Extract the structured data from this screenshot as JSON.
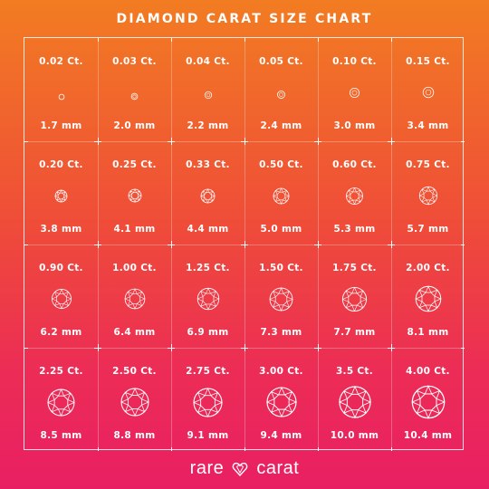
{
  "title": "DIAMOND CARAT SIZE CHART",
  "brand": {
    "left": "rare",
    "right": "carat",
    "logo_icon": "heart-diamond-icon"
  },
  "colors": {
    "gradient_top": "#f27c22",
    "gradient_bottom": "#e91f63",
    "foreground": "#ffffff"
  },
  "diamonds": [
    {
      "carat": "0.02 Ct.",
      "size": "1.7 mm",
      "diameter_mm": 1.7
    },
    {
      "carat": "0.03 Ct.",
      "size": "2.0 mm",
      "diameter_mm": 2.0
    },
    {
      "carat": "0.04 Ct.",
      "size": "2.2 mm",
      "diameter_mm": 2.2
    },
    {
      "carat": "0.05 Ct.",
      "size": "2.4 mm",
      "diameter_mm": 2.4
    },
    {
      "carat": "0.10 Ct.",
      "size": "3.0 mm",
      "diameter_mm": 3.0
    },
    {
      "carat": "0.15 Ct.",
      "size": "3.4 mm",
      "diameter_mm": 3.4
    },
    {
      "carat": "0.20 Ct.",
      "size": "3.8 mm",
      "diameter_mm": 3.8
    },
    {
      "carat": "0.25 Ct.",
      "size": "4.1 mm",
      "diameter_mm": 4.1
    },
    {
      "carat": "0.33 Ct.",
      "size": "4.4 mm",
      "diameter_mm": 4.4
    },
    {
      "carat": "0.50 Ct.",
      "size": "5.0 mm",
      "diameter_mm": 5.0
    },
    {
      "carat": "0.60 Ct.",
      "size": "5.3 mm",
      "diameter_mm": 5.3
    },
    {
      "carat": "0.75 Ct.",
      "size": "5.7 mm",
      "diameter_mm": 5.7
    },
    {
      "carat": "0.90 Ct.",
      "size": "6.2 mm",
      "diameter_mm": 6.2
    },
    {
      "carat": "1.00 Ct.",
      "size": "6.4 mm",
      "diameter_mm": 6.4
    },
    {
      "carat": "1.25 Ct.",
      "size": "6.9 mm",
      "diameter_mm": 6.9
    },
    {
      "carat": "1.50 Ct.",
      "size": "7.3 mm",
      "diameter_mm": 7.3
    },
    {
      "carat": "1.75 Ct.",
      "size": "7.7 mm",
      "diameter_mm": 7.7
    },
    {
      "carat": "2.00 Ct.",
      "size": "8.1 mm",
      "diameter_mm": 8.1
    },
    {
      "carat": "2.25 Ct.",
      "size": "8.5 mm",
      "diameter_mm": 8.5
    },
    {
      "carat": "2.50 Ct.",
      "size": "8.8 mm",
      "diameter_mm": 8.8
    },
    {
      "carat": "2.75 Ct.",
      "size": "9.1 mm",
      "diameter_mm": 9.1
    },
    {
      "carat": "3.00 Ct.",
      "size": "9.4 mm",
      "diameter_mm": 9.4
    },
    {
      "carat": "3.5 Ct.",
      "size": "10.0 mm",
      "diameter_mm": 10.0
    },
    {
      "carat": "4.00 Ct.",
      "size": "10.4 mm",
      "diameter_mm": 10.4
    }
  ]
}
